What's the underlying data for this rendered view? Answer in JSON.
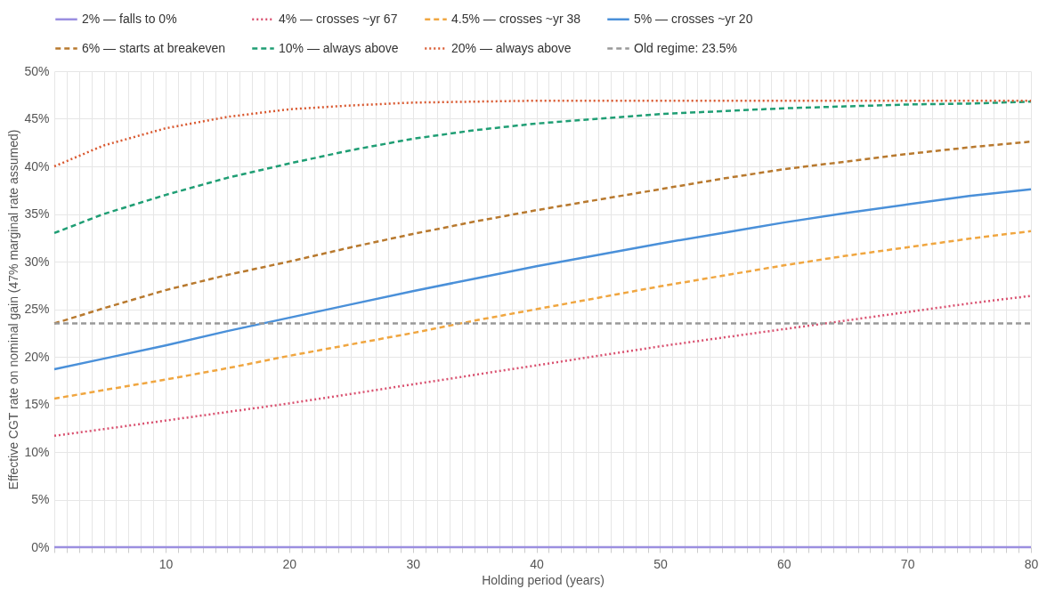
{
  "chart_data": {
    "type": "line",
    "x": [
      1,
      5,
      10,
      15,
      20,
      25,
      30,
      35,
      40,
      45,
      50,
      55,
      60,
      65,
      70,
      75,
      80
    ],
    "series": [
      {
        "name": "2% — falls to 0%",
        "color": "#9b8fe0",
        "line_style": "solid",
        "values": [
          0,
          0,
          0,
          0,
          0,
          0,
          0,
          0,
          0,
          0,
          0,
          0,
          0,
          0,
          0,
          0,
          0
        ]
      },
      {
        "name": "4% — crosses ~yr 67",
        "color": "#d9506f",
        "line_style": "dotted",
        "values": [
          11.7,
          12.4,
          13.3,
          14.2,
          15.1,
          16.1,
          17.1,
          18.1,
          19.1,
          20.1,
          21.1,
          22.0,
          22.9,
          23.8,
          24.7,
          25.6,
          26.4
        ]
      },
      {
        "name": "4.5% — crosses ~yr 38",
        "color": "#f0a640",
        "line_style": "dashed",
        "values": [
          15.6,
          16.5,
          17.6,
          18.8,
          20.1,
          21.3,
          22.5,
          23.8,
          25.0,
          26.2,
          27.4,
          28.5,
          29.6,
          30.6,
          31.5,
          32.4,
          33.2
        ]
      },
      {
        "name": "5% — crosses ~yr 20",
        "color": "#4a90d9",
        "line_style": "solid",
        "values": [
          18.7,
          19.8,
          21.2,
          22.7,
          24.1,
          25.5,
          26.9,
          28.2,
          29.5,
          30.7,
          31.9,
          33.0,
          34.1,
          35.1,
          36.0,
          36.9,
          37.6
        ]
      },
      {
        "name": "6% — starts at breakeven",
        "color": "#b8792e",
        "line_style": "dashed",
        "values": [
          23.5,
          25.1,
          27.0,
          28.6,
          30.0,
          31.5,
          32.9,
          34.2,
          35.4,
          36.5,
          37.6,
          38.7,
          39.7,
          40.5,
          41.3,
          42.0,
          42.6
        ]
      },
      {
        "name": "10% — always above",
        "color": "#1f9e74",
        "line_style": "dashed",
        "values": [
          33.0,
          35.0,
          37.0,
          38.8,
          40.3,
          41.7,
          42.9,
          43.8,
          44.5,
          45.0,
          45.5,
          45.8,
          46.1,
          46.3,
          46.5,
          46.6,
          46.8
        ]
      },
      {
        "name": "20% — always above",
        "color": "#d9582f",
        "line_style": "dotted",
        "values": [
          40.0,
          42.2,
          44.0,
          45.2,
          46.0,
          46.4,
          46.7,
          46.8,
          46.9,
          46.9,
          46.9,
          46.9,
          46.9,
          46.9,
          46.9,
          46.9,
          46.9
        ]
      },
      {
        "name": "Old regime: 23.5%",
        "color": "#999999",
        "line_style": "dashed",
        "values": [
          23.5,
          23.5,
          23.5,
          23.5,
          23.5,
          23.5,
          23.5,
          23.5,
          23.5,
          23.5,
          23.5,
          23.5,
          23.5,
          23.5,
          23.5,
          23.5,
          23.5
        ]
      }
    ],
    "xlabel": "Holding period (years)",
    "ylabel": "Effective CGT rate on nominal gain (47% marginal rate assumed)",
    "xlim": [
      1,
      80
    ],
    "xticks": [
      {
        "value": 1,
        "label": null
      },
      {
        "value": 2,
        "label": null
      },
      {
        "value": 3,
        "label": null
      },
      {
        "value": 4,
        "label": null
      },
      {
        "value": 5,
        "label": null
      },
      {
        "value": 6,
        "label": null
      },
      {
        "value": 7,
        "label": null
      },
      {
        "value": 8,
        "label": null
      },
      {
        "value": 9,
        "label": null
      },
      10,
      {
        "value": 11,
        "label": null
      },
      {
        "value": 12,
        "label": null
      },
      {
        "value": 13,
        "label": null
      },
      {
        "value": 14,
        "label": null
      },
      {
        "value": 15,
        "label": null
      },
      {
        "value": 16,
        "label": null
      },
      {
        "value": 17,
        "label": null
      },
      {
        "value": 18,
        "label": null
      },
      {
        "value": 19,
        "label": null
      },
      20,
      {
        "value": 21,
        "label": null
      },
      {
        "value": 22,
        "label": null
      },
      {
        "value": 23,
        "label": null
      },
      {
        "value": 24,
        "label": null
      },
      {
        "value": 25,
        "label": null
      },
      {
        "value": 26,
        "label": null
      },
      {
        "value": 27,
        "label": null
      },
      {
        "value": 28,
        "label": null
      },
      {
        "value": 29,
        "label": null
      },
      30,
      {
        "value": 31,
        "label": null
      },
      {
        "value": 32,
        "label": null
      },
      {
        "value": 33,
        "label": null
      },
      {
        "value": 34,
        "label": null
      },
      {
        "value": 35,
        "label": null
      },
      {
        "value": 36,
        "label": null
      },
      {
        "value": 37,
        "label": null
      },
      {
        "value": 38,
        "label": null
      },
      {
        "value": 39,
        "label": null
      },
      40,
      {
        "value": 41,
        "label": null
      },
      {
        "value": 42,
        "label": null
      },
      {
        "value": 43,
        "label": null
      },
      {
        "value": 44,
        "label": null
      },
      {
        "value": 45,
        "label": null
      },
      {
        "value": 46,
        "label": null
      },
      {
        "value": 47,
        "label": null
      },
      {
        "value": 48,
        "label": null
      },
      {
        "value": 49,
        "label": null
      },
      50,
      {
        "value": 51,
        "label": null
      },
      {
        "value": 52,
        "label": null
      },
      {
        "value": 53,
        "label": null
      },
      {
        "value": 54,
        "label": null
      },
      {
        "value": 55,
        "label": null
      },
      {
        "value": 56,
        "label": null
      },
      {
        "value": 57,
        "label": null
      },
      {
        "value": 58,
        "label": null
      },
      {
        "value": 59,
        "label": null
      },
      60,
      {
        "value": 61,
        "label": null
      },
      {
        "value": 62,
        "label": null
      },
      {
        "value": 63,
        "label": null
      },
      {
        "value": 64,
        "label": null
      },
      {
        "value": 65,
        "label": null
      },
      {
        "value": 66,
        "label": null
      },
      {
        "value": 67,
        "label": null
      },
      {
        "value": 68,
        "label": null
      },
      {
        "value": 69,
        "label": null
      },
      70,
      {
        "value": 71,
        "label": null
      },
      {
        "value": 72,
        "label": null
      },
      {
        "value": 73,
        "label": null
      },
      {
        "value": 74,
        "label": null
      },
      {
        "value": 75,
        "label": null
      },
      {
        "value": 76,
        "label": null
      },
      {
        "value": 77,
        "label": null
      },
      {
        "value": 78,
        "label": null
      },
      {
        "value": 79,
        "label": null
      },
      80
    ],
    "ylim": [
      0,
      50
    ],
    "yticks": [
      {
        "value": 0,
        "label": "0%"
      },
      {
        "value": 5,
        "label": "5%"
      },
      {
        "value": 10,
        "label": "10%"
      },
      {
        "value": 15,
        "label": "15%"
      },
      {
        "value": 20,
        "label": "20%"
      },
      {
        "value": 25,
        "label": "25%"
      },
      {
        "value": 30,
        "label": "30%"
      },
      {
        "value": 35,
        "label": "35%"
      },
      {
        "value": 40,
        "label": "40%"
      },
      {
        "value": 45,
        "label": "45%"
      },
      {
        "value": 50,
        "label": "50%"
      }
    ],
    "grid": true,
    "legend": "top"
  }
}
